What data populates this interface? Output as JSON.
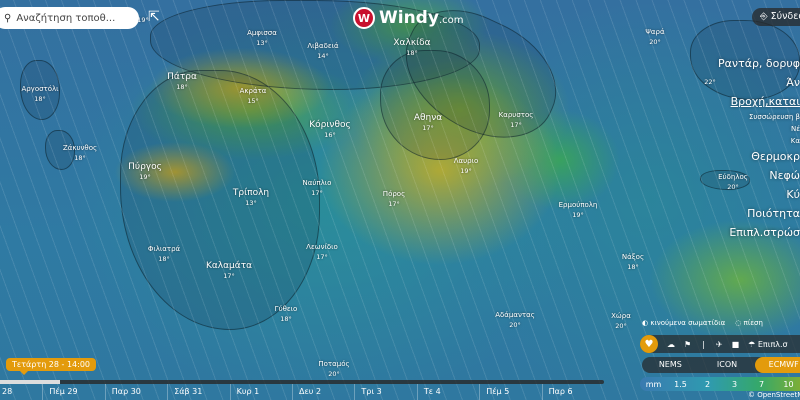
{
  "search": {
    "placeholder": "Αναζήτηση τοποθ..."
  },
  "logo": {
    "brand": "Windy",
    "suffix": ".com",
    "color": "#c8102e"
  },
  "login": {
    "label": "Σύνδεσ"
  },
  "menu": [
    {
      "label": "Ραντάρ, δορυφ",
      "style": "big"
    },
    {
      "label": "Άν",
      "style": "big"
    },
    {
      "label": "Βροχή,καται",
      "style": "active"
    },
    {
      "label": "Συσσώρευση β",
      "style": "small"
    },
    {
      "label": "Νέ",
      "style": "small"
    },
    {
      "label": "Κα",
      "style": "small"
    },
    {
      "label": "Θερμοκρ",
      "style": "big"
    },
    {
      "label": "Νεφώ",
      "style": "big"
    },
    {
      "label": "Κύ",
      "style": "big"
    },
    {
      "label": "Ποιότητα",
      "style": "big"
    },
    {
      "label": "Επιπλ.στρώσ",
      "style": "big"
    }
  ],
  "cities": [
    {
      "name": "",
      "temp": "19°"
    },
    {
      "name": "Αργοστόλι",
      "temp": "18°"
    },
    {
      "name": "Ζάκυνθος",
      "temp": "18°"
    },
    {
      "name": "Πάτρα",
      "temp": "18°"
    },
    {
      "name": "Ακράτα",
      "temp": "15°"
    },
    {
      "name": "Αμφισσα",
      "temp": "13°"
    },
    {
      "name": "Λιβαδειά",
      "temp": "14°"
    },
    {
      "name": "Χαλκίδα",
      "temp": "18°"
    },
    {
      "name": "Αθηνα",
      "temp": "17°"
    },
    {
      "name": "Κόρινθος",
      "temp": "16°"
    },
    {
      "name": "Πύργος",
      "temp": "19°"
    },
    {
      "name": "Τρίπολη",
      "temp": "13°"
    },
    {
      "name": "Ναύπλιο",
      "temp": "17°"
    },
    {
      "name": "Πόρος",
      "temp": "17°"
    },
    {
      "name": "Λαυριο",
      "temp": "19°"
    },
    {
      "name": "Καρυστος",
      "temp": "17°"
    },
    {
      "name": "Ερμούπολη",
      "temp": "19°"
    },
    {
      "name": "Φιλιατρά",
      "temp": "18°"
    },
    {
      "name": "Καλαμάτα",
      "temp": "17°"
    },
    {
      "name": "Λεωνίδιο",
      "temp": "17°"
    },
    {
      "name": "Γύθειο",
      "temp": "18°"
    },
    {
      "name": "Αδάμαντας",
      "temp": "20°"
    },
    {
      "name": "Χώρα",
      "temp": "20°"
    },
    {
      "name": "Νάξος",
      "temp": "18°"
    },
    {
      "name": "Εύδηλος",
      "temp": "20°"
    },
    {
      "name": "Ψαρά",
      "temp": "20°"
    },
    {
      "name": "",
      "temp": "22°"
    },
    {
      "name": "Ποταμός",
      "temp": "20°"
    }
  ],
  "toggles": {
    "particles": "κινούμενα σωματίδια",
    "pressure": "πίεση"
  },
  "overlays": {
    "more": "Επιπλ.σ"
  },
  "models": [
    "NEMS",
    "ICON",
    "ECMWF"
  ],
  "selected_model": "ECMWF",
  "legend": {
    "unit": "mm",
    "values": [
      "1.5",
      "2",
      "3",
      "7",
      "10"
    ]
  },
  "attribution": "© OpenStreetMap",
  "timeline": {
    "current": "Τετάρτη 28 - 14:00",
    "progress_percent": 2,
    "days": [
      "28",
      "Πέμ 29",
      "Παρ 30",
      "Σάβ 31",
      "Κυρ 1",
      "Δευ 2",
      "Τρι 3",
      "Τε 4",
      "Πέμ 5",
      "Παρ 6"
    ]
  },
  "colors": {
    "accent": "#e39b0c"
  }
}
